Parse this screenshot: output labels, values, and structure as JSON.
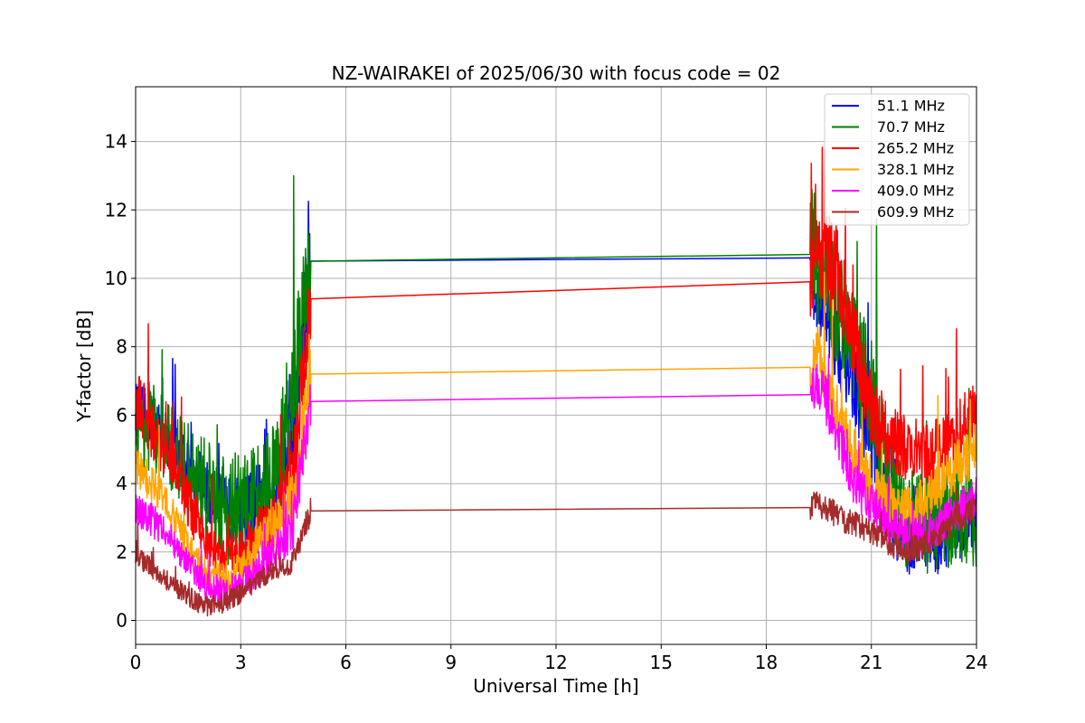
{
  "chart_data": {
    "type": "line",
    "title": "NZ-WAIRAKEI of 2025/06/30 with focus code = 02",
    "xlabel": "Universal Time [h]",
    "ylabel": "Y-factor [dB]",
    "xlim": [
      0,
      24
    ],
    "ylim": [
      -0.7,
      15.6
    ],
    "xticks": [
      0,
      3,
      6,
      9,
      12,
      15,
      18,
      21,
      24
    ],
    "yticks": [
      0,
      2,
      4,
      6,
      8,
      10,
      12,
      14
    ],
    "grid": true,
    "legend_position": "top-right",
    "gap": [
      5.0,
      19.25
    ],
    "series": [
      {
        "name": " 51.1 MHz",
        "color": "#0000ff",
        "x": [
          0,
          0.5,
          1,
          1.5,
          2,
          2.5,
          3,
          3.5,
          4,
          4.5,
          5,
          19.25,
          19.5,
          20,
          20.5,
          21,
          21.5,
          22,
          22.5,
          23,
          23.5,
          24
        ],
        "y": [
          6.2,
          5.8,
          5.2,
          4.6,
          3.8,
          3.2,
          3.2,
          3.4,
          4.2,
          5.5,
          10.5,
          10.6,
          9.2,
          8.2,
          7.0,
          5.2,
          3.0,
          2.2,
          2.5,
          2.3,
          2.8,
          3.0
        ],
        "spread": [
          0.8,
          0.8,
          0.8,
          0.8,
          0.9,
          1.0,
          1.0,
          1.2,
          1.4,
          1.5,
          1.5,
          1.2,
          1.2,
          1.2,
          1.2,
          1.2,
          1.0,
          0.9,
          0.9,
          1.0,
          1.0,
          1.0
        ]
      },
      {
        "name": " 70.7 MHz",
        "color": "#008000",
        "x": [
          0,
          0.5,
          1,
          1.5,
          2,
          2.5,
          3,
          3.5,
          4,
          4.5,
          5,
          19.25,
          19.5,
          20,
          20.5,
          21,
          21.5,
          22,
          22.5,
          23,
          23.5,
          24
        ],
        "y": [
          6.0,
          5.6,
          5.0,
          4.4,
          3.8,
          3.3,
          3.2,
          3.5,
          4.2,
          6.5,
          10.5,
          10.7,
          10.5,
          9.2,
          8.0,
          6.5,
          4.0,
          3.0,
          2.8,
          2.8,
          3.0,
          3.0
        ],
        "spread": [
          1.4,
          1.3,
          1.3,
          1.4,
          1.5,
          1.7,
          1.8,
          1.8,
          1.8,
          2.0,
          2.0,
          2.0,
          2.0,
          1.8,
          1.8,
          1.7,
          1.5,
          1.5,
          1.5,
          1.5,
          1.5,
          1.5
        ]
      },
      {
        "name": "265.2 MHz",
        "color": "#ff0000",
        "x": [
          0,
          0.5,
          1,
          1.5,
          2,
          2.5,
          3,
          3.5,
          4,
          4.5,
          5,
          19.25,
          19.5,
          20,
          20.5,
          21,
          21.5,
          22,
          22.5,
          23,
          23.5,
          24
        ],
        "y": [
          6.5,
          5.5,
          4.8,
          3.5,
          2.2,
          1.8,
          2.0,
          2.5,
          3.2,
          4.2,
          9.4,
          9.9,
          10.8,
          10.3,
          8.2,
          6.2,
          5.3,
          5.0,
          4.8,
          5.0,
          5.5,
          6.0
        ],
        "spread": [
          1.0,
          0.9,
          0.8,
          0.8,
          0.6,
          0.6,
          0.7,
          0.8,
          0.9,
          1.2,
          1.3,
          1.2,
          1.4,
          1.3,
          1.2,
          1.2,
          1.0,
          1.0,
          1.0,
          1.0,
          1.0,
          1.0
        ]
      },
      {
        "name": "328.1 MHz",
        "color": "#ffa500",
        "x": [
          0,
          0.5,
          1,
          1.5,
          2,
          2.5,
          3,
          3.5,
          4,
          4.5,
          5,
          19.25,
          19.5,
          20,
          20.5,
          21,
          21.5,
          22,
          22.5,
          23,
          23.5,
          24
        ],
        "y": [
          4.5,
          4.0,
          3.2,
          2.2,
          1.3,
          1.2,
          1.5,
          2.2,
          2.8,
          3.5,
          7.2,
          7.4,
          7.8,
          6.2,
          4.8,
          4.0,
          3.5,
          3.2,
          3.5,
          4.0,
          4.6,
          5.0
        ],
        "spread": [
          0.6,
          0.6,
          0.5,
          0.5,
          0.5,
          0.5,
          0.5,
          0.6,
          0.7,
          0.9,
          1.0,
          0.9,
          0.9,
          0.8,
          0.8,
          0.8,
          0.7,
          0.7,
          0.7,
          0.7,
          0.8,
          0.8
        ]
      },
      {
        "name": "409.0 MHz",
        "color": "#ff00ff",
        "x": [
          0,
          0.5,
          1,
          1.5,
          2,
          2.5,
          3,
          3.5,
          4,
          4.5,
          5,
          19.25,
          19.5,
          20,
          20.5,
          21,
          21.5,
          22,
          22.5,
          23,
          23.5,
          24
        ],
        "y": [
          3.3,
          2.9,
          2.4,
          1.7,
          1.0,
          0.9,
          1.1,
          1.5,
          2.0,
          2.8,
          6.4,
          6.6,
          7.0,
          5.5,
          4.0,
          3.4,
          2.8,
          2.4,
          2.6,
          2.8,
          3.2,
          3.6
        ],
        "spread": [
          0.5,
          0.5,
          0.5,
          0.4,
          0.4,
          0.4,
          0.4,
          0.5,
          0.6,
          0.7,
          0.8,
          0.7,
          0.8,
          0.7,
          0.7,
          0.6,
          0.6,
          0.6,
          0.6,
          0.6,
          0.6,
          0.6
        ]
      },
      {
        "name": "609.9 MHz",
        "color": "#a52a2a",
        "x": [
          0,
          0.5,
          1,
          1.5,
          2,
          2.5,
          3,
          3.5,
          4,
          4.5,
          5,
          19.25,
          19.5,
          20,
          20.5,
          21,
          21.5,
          22,
          22.5,
          23,
          23.5,
          24
        ],
        "y": [
          1.9,
          1.5,
          1.1,
          0.7,
          0.4,
          0.5,
          0.8,
          1.2,
          1.5,
          1.7,
          3.2,
          3.3,
          3.4,
          3.1,
          2.8,
          2.6,
          2.3,
          2.0,
          2.2,
          2.6,
          3.0,
          3.3
        ],
        "spread": [
          0.3,
          0.3,
          0.3,
          0.3,
          0.3,
          0.3,
          0.3,
          0.3,
          0.3,
          0.4,
          0.4,
          0.4,
          0.4,
          0.4,
          0.4,
          0.4,
          0.4,
          0.4,
          0.4,
          0.4,
          0.4,
          0.4
        ]
      }
    ]
  }
}
